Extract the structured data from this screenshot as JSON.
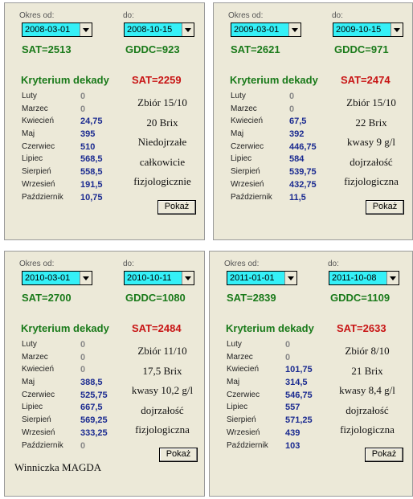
{
  "labels": {
    "from": "Okres od:",
    "to": "do:",
    "header": "Kryterium dekady",
    "button": "Pokaż"
  },
  "months": [
    "Luty",
    "Marzec",
    "Kwiecień",
    "Maj",
    "Czerwiec",
    "Lipiec",
    "Sierpień",
    "Wrzesień",
    "Październik"
  ],
  "panels": [
    {
      "from": "2008-03-01",
      "to": "2008-10-15",
      "sat_text": "SAT=2513",
      "gddc_text": "GDDC=923",
      "kryt_sat": "SAT=2259",
      "values": [
        "0",
        "0",
        "24,75",
        "395",
        "510",
        "568,5",
        "558,5",
        "191,5",
        "10,75"
      ],
      "notes": [
        "Zbiór 15/10",
        "20 Brix",
        "Niedojrzałe",
        "całkowicie",
        "fizjologicznie"
      ]
    },
    {
      "from": "2009-03-01",
      "to": "2009-10-15",
      "sat_text": "SAT=2621",
      "gddc_text": "GDDC=971",
      "kryt_sat": "SAT=2474",
      "values": [
        "0",
        "0",
        "67,5",
        "392",
        "446,75",
        "584",
        "539,75",
        "432,75",
        "11,5"
      ],
      "notes": [
        "Zbiór 15/10",
        "22 Brix",
        "kwasy 9 g/l",
        "dojrzałość",
        "fizjologiczna"
      ]
    },
    {
      "from": "2010-03-01",
      "to": "2010-10-11",
      "sat_text": "SAT=2700",
      "gddc_text": "GDDC=1080",
      "kryt_sat": "SAT=2484",
      "values": [
        "0",
        "0",
        "0",
        "388,5",
        "525,75",
        "667,5",
        "569,25",
        "333,25",
        "0"
      ],
      "notes": [
        "Zbiór 11/10",
        "17,5 Brix",
        "kwasy 10,2 g/l",
        "dojrzałość",
        "fizjologiczna"
      ]
    },
    {
      "from": "2011-01-01",
      "to": "2011-10-08",
      "sat_text": "SAT=2839",
      "gddc_text": "GDDC=1109",
      "kryt_sat": "SAT=2633",
      "values": [
        "0",
        "0",
        "101,75",
        "314,5",
        "546,75",
        "557",
        "571,25",
        "439",
        "103"
      ],
      "notes": [
        "Zbiór 8/10",
        "21 Brix",
        "kwasy 8,4 g/l",
        "dojrzałość",
        "fizjologiczna"
      ]
    }
  ],
  "footer": "Winniczka MAGDA",
  "colors": {
    "select_bg": "#35f0f7",
    "green": "#1a7a1a",
    "red": "#c81414",
    "value_blue": "#1a2a90",
    "panel_bg": "#ece9d8"
  }
}
